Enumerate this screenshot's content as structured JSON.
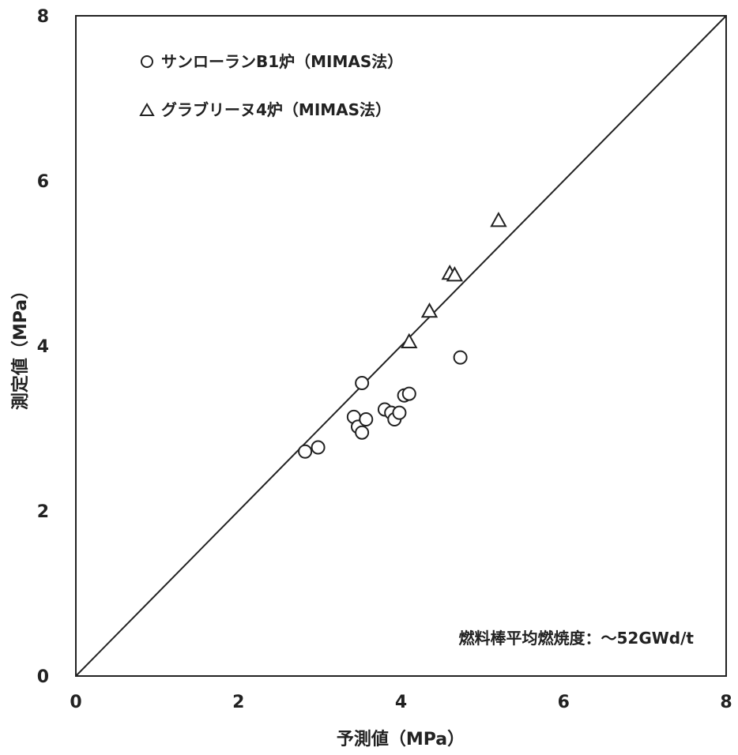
{
  "chart_data": {
    "type": "scatter",
    "title": "",
    "xlabel": "予測値（MPa）",
    "ylabel": "測定値（MPa）",
    "xlim": [
      0,
      8
    ],
    "ylim": [
      0,
      8
    ],
    "xticks": [
      "0",
      "2",
      "4",
      "6",
      "8"
    ],
    "yticks": [
      "0",
      "2",
      "4",
      "6",
      "8"
    ],
    "grid": false,
    "legend_position": "top-left",
    "reference_line": {
      "from": [
        0,
        0
      ],
      "to": [
        8,
        8
      ]
    },
    "annotation": "燃料棒平均燃焼度：～52GWd/t",
    "series": [
      {
        "name": "サンローランB1炉（MIMAS法）",
        "marker": "circle",
        "color": "#222222",
        "points": [
          {
            "x": 2.82,
            "y": 2.72
          },
          {
            "x": 2.98,
            "y": 2.77
          },
          {
            "x": 3.42,
            "y": 3.14
          },
          {
            "x": 3.47,
            "y": 3.02
          },
          {
            "x": 3.52,
            "y": 2.95
          },
          {
            "x": 3.57,
            "y": 3.11
          },
          {
            "x": 3.52,
            "y": 3.55
          },
          {
            "x": 3.8,
            "y": 3.23
          },
          {
            "x": 3.88,
            "y": 3.19
          },
          {
            "x": 3.92,
            "y": 3.11
          },
          {
            "x": 3.98,
            "y": 3.19
          },
          {
            "x": 4.04,
            "y": 3.4
          },
          {
            "x": 4.1,
            "y": 3.42
          },
          {
            "x": 4.73,
            "y": 3.86
          }
        ]
      },
      {
        "name": "グラブリーヌ4炉（MIMAS法）",
        "marker": "triangle",
        "color": "#222222",
        "points": [
          {
            "x": 4.1,
            "y": 4.05
          },
          {
            "x": 4.35,
            "y": 4.42
          },
          {
            "x": 4.6,
            "y": 4.88
          },
          {
            "x": 4.66,
            "y": 4.86
          },
          {
            "x": 5.2,
            "y": 5.52
          }
        ]
      }
    ]
  }
}
